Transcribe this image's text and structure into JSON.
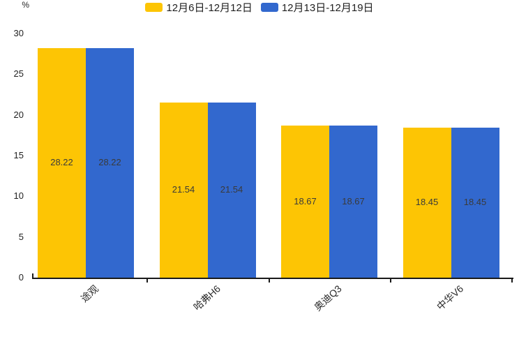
{
  "chart_data": {
    "type": "bar",
    "title": "",
    "unit_label": "%",
    "categories": [
      "途观",
      "哈弗H6",
      "奥迪Q3",
      "中华V6"
    ],
    "series": [
      {
        "name": "12月6日-12月12日",
        "color": "#FDC504",
        "values": [
          28.22,
          21.54,
          18.67,
          18.45
        ]
      },
      {
        "name": "12月13日-12月19日",
        "color": "#3268CE",
        "values": [
          28.22,
          21.54,
          18.67,
          18.45
        ]
      }
    ],
    "ylim": [
      0,
      30
    ],
    "yticks": [
      0,
      5,
      10,
      15,
      20,
      25,
      30
    ],
    "grid": false,
    "legend_position": "top-center",
    "value_labels_shown": true,
    "axis_color": "#1a1a1a",
    "value_label_color": "#3a3a3a"
  }
}
